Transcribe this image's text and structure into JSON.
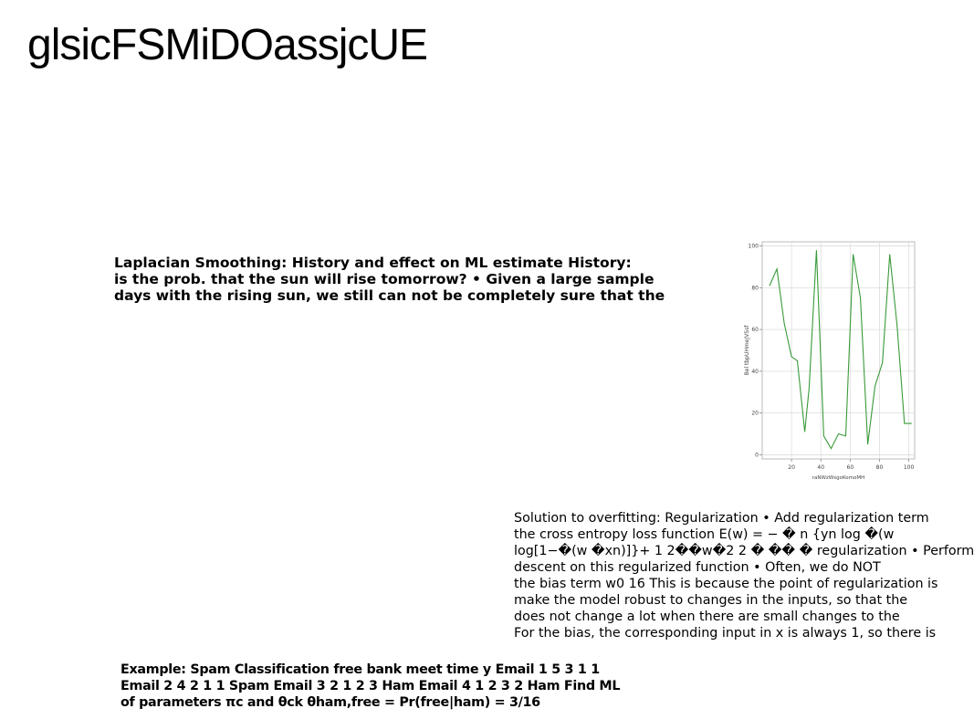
{
  "title": "glsicFSMiDOassjcUE",
  "block_a": {
    "lines": [
      "Laplacian Smoothing: History and effect on ML estimate History:",
      "is the prob. that the sun will rise tomorrow? • Given a large sample",
      "days with the rising sun, we still can not be completely sure that the"
    ]
  },
  "block_b": {
    "lines": [
      "Solution to overfitting: Regularization • Add regularization term",
      "the cross entropy loss function E(w) = − � n {yn log �(w",
      "log[1−�(w �xn)]}+ 1 2��w�2 2 � �� � regularization • Perform",
      "descent on this regularized function • Often, we do NOT",
      "the bias term w0 16 This is because the point of regularization is",
      "make the model robust to changes in the inputs, so that the",
      "does not change a lot when there are small changes to the",
      "For the bias, the corresponding input in x is always 1, so there is"
    ]
  },
  "block_c": {
    "lines": [
      "Example: Spam Classification free bank meet time y Email 1 5 3 1 1",
      "Email 2 4 2 1 1 Spam Email 3 2 1 2 3 Ham Email 4 1 2 3 2 Ham Find ML",
      "of parameters πc and θck θham,free = Pr(free|ham) = 3/16"
    ]
  },
  "chart_data": {
    "type": "line",
    "xlabel": "raNWzWsgoKomoMH",
    "ylabel": "Bel tbpUHmeJVSsf",
    "xlim": [
      0,
      104
    ],
    "ylim": [
      -2,
      102
    ],
    "xticks": [
      20,
      40,
      60,
      80,
      100
    ],
    "yticks": [
      0,
      20,
      40,
      60,
      80,
      100
    ],
    "grid": true,
    "line_color": "#3a9a3a",
    "x": [
      5,
      10,
      15,
      20,
      24,
      29,
      32,
      37,
      42,
      47,
      52,
      57,
      62,
      67,
      72,
      77,
      82,
      87,
      92,
      97,
      102
    ],
    "y": [
      81,
      89,
      63,
      47,
      45,
      11,
      32,
      98,
      9,
      3,
      10,
      9,
      96,
      75,
      5,
      33,
      44,
      96,
      62,
      15,
      15
    ]
  }
}
